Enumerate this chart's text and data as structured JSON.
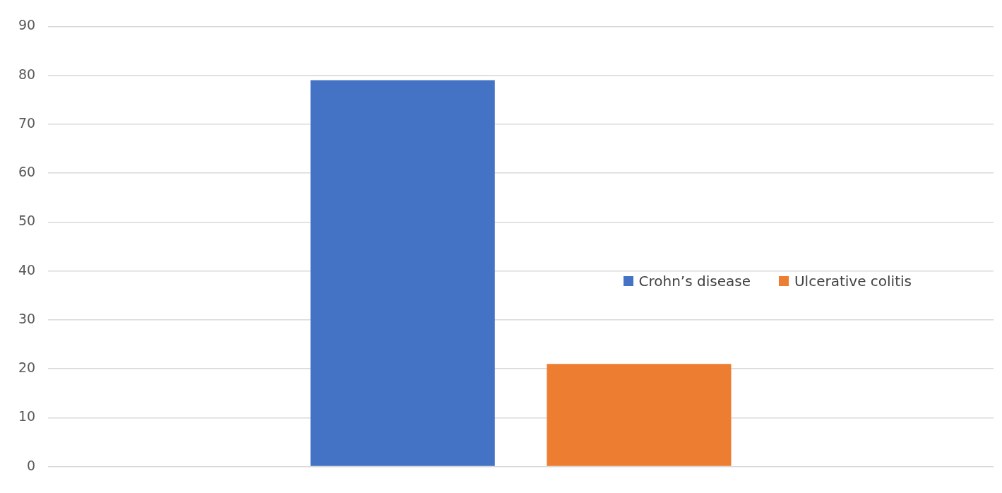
{
  "chart_data": {
    "type": "bar",
    "categories": [
      null
    ],
    "series": [
      {
        "name": "Crohn’s disease",
        "color": "#4472c4",
        "values": [
          79
        ]
      },
      {
        "name": "Ulcerative colitis",
        "color": "#ed7d31",
        "values": [
          21
        ]
      }
    ],
    "ylim": [
      0,
      90
    ],
    "yticks": [
      0,
      10,
      20,
      30,
      40,
      50,
      60,
      70,
      80,
      90
    ],
    "grid": "y",
    "legend": "right"
  }
}
